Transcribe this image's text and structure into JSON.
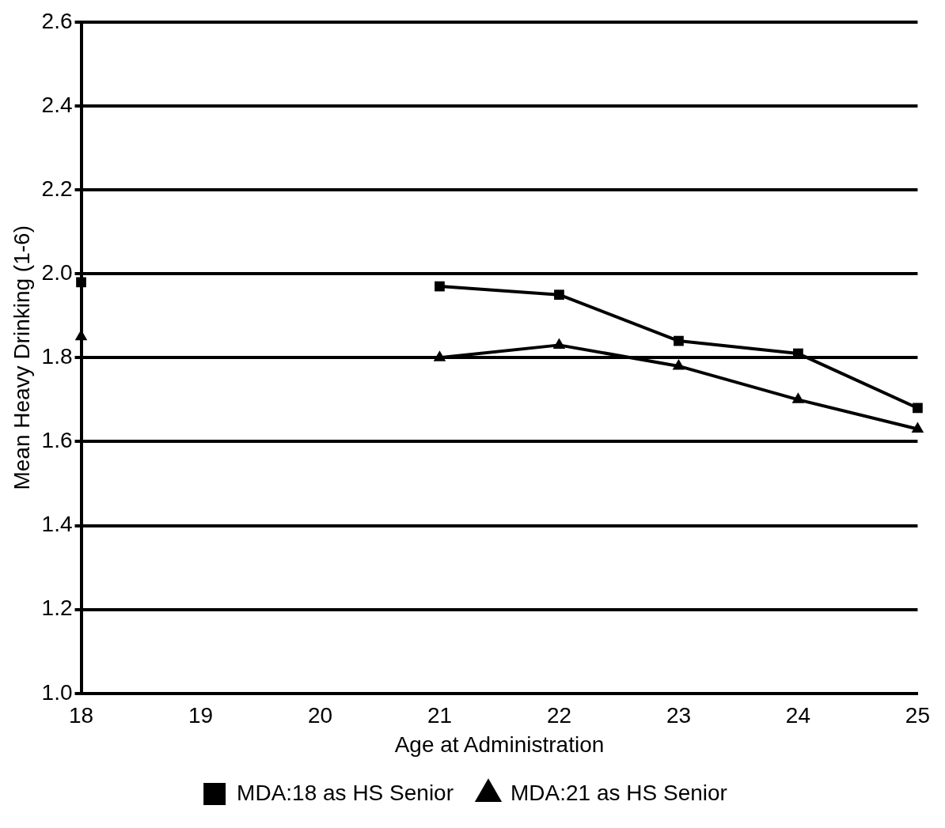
{
  "chart_data": {
    "type": "line",
    "xlabel": "Age at Administration",
    "ylabel": "Mean Heavy Drinking (1-6)",
    "categories": [
      "18",
      "19",
      "20",
      "21",
      "22",
      "23",
      "24",
      "25"
    ],
    "series": [
      {
        "name": "MDA:18 as HS Senior",
        "color": "#000000",
        "marker": "square",
        "values": [
          1.98,
          null,
          null,
          1.97,
          1.95,
          1.84,
          1.81,
          1.68
        ]
      },
      {
        "name": "MDA:21 as HS Senior",
        "color": "#000000",
        "marker": "triangle",
        "values": [
          1.85,
          null,
          null,
          1.8,
          1.83,
          1.78,
          1.7,
          1.63
        ]
      }
    ],
    "ylim": [
      1,
      2.6
    ],
    "yticks": [
      {
        "value": 1,
        "label": "1.0"
      },
      {
        "value": 1.2,
        "label": "1.2"
      },
      {
        "value": 1.4,
        "label": "1.4"
      },
      {
        "value": 1.6,
        "label": "1.6"
      },
      {
        "value": 1.8,
        "label": "1.8"
      },
      {
        "value": 2,
        "label": "2.0"
      },
      {
        "value": 2.2,
        "label": "2.2"
      },
      {
        "value": 2.4,
        "label": "2.4"
      },
      {
        "value": 2.6,
        "label": "2.6"
      }
    ],
    "grid": "y",
    "legend": "bottom",
    "line_style": "solid"
  }
}
